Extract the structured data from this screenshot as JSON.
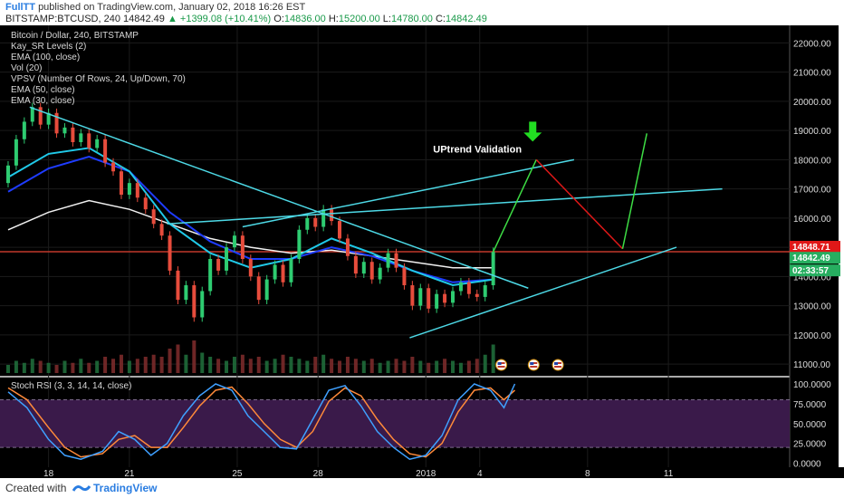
{
  "header": {
    "author": "FullTT",
    "published": "published on TradingView.com, January 02, 2018 16:26 EST",
    "symbol": "BITSTAMP:BTCUSD, 240",
    "last": "14842.49",
    "change": "▲ +1399.08 (+10.41%)",
    "o_label": "O:",
    "o_value": "14836.00",
    "h_label": "H:",
    "h_value": "15200.00",
    "l_label": "L:",
    "l_value": "14780.00",
    "c_label": "C:",
    "c_value": "14842.49"
  },
  "legend": [
    "Bitcoin / Dollar, 240, BITSTAMP",
    "Kay_SR Levels (2)",
    "EMA (100, close)",
    "Vol (20)",
    "VPSV (Number Of Rows, 24, Up/Down, 70)",
    "EMA (50, close)",
    "EMA (30, close)"
  ],
  "annotation": "UPtrend Validation",
  "price_tags": [
    "14848.71",
    "14842.49",
    "02:33:57"
  ],
  "rsi_label": "Stoch RSI (3, 3, 14, 14, close)",
  "footer": {
    "created": "Created with",
    "brand": "TradingView"
  },
  "colors": {
    "background": "#000000",
    "up_candle": "#2ecc71",
    "down_candle": "#e74c3c",
    "trendline": "#4dd9e6",
    "projection_up": "#3ddc44",
    "projection_down": "#e01818",
    "resistance": "#c0392b",
    "ema30": "#20c9e8",
    "ema50": "#1e3cff",
    "ema100": "#f0f0f0",
    "rsi_k": "#3fa0ff",
    "rsi_d": "#ff8a3a",
    "rsi_band": "#3a1a4a"
  },
  "icons": [
    "flag-us-icon",
    "green-down-arrow-icon",
    "tradingview-logo-icon"
  ],
  "chart_data": [
    {
      "type": "candlestick",
      "price_axis_ticks": [
        "22000.00",
        "21000.00",
        "20000.00",
        "19000.00",
        "18000.00",
        "17000.00",
        "16000.00",
        "15000.00",
        "14000.00",
        "13000.00",
        "12000.00",
        "11000.00"
      ],
      "price_ticks_values": [
        22000,
        21000,
        20000,
        19000,
        18000,
        17000,
        16000,
        15000,
        14000,
        13000,
        12000,
        11000
      ],
      "ylim": [
        10600,
        22600
      ],
      "x_ticks": [
        "18",
        "21",
        "25",
        "28",
        "2018",
        "4",
        "8",
        "11"
      ],
      "x_ticks_day": [
        0,
        3,
        7,
        10,
        14,
        16,
        20,
        23
      ],
      "xlim_days": [
        -1.6,
        27.5
      ],
      "candles": [
        {
          "d": -1.5,
          "o": 17200,
          "c": 17800
        },
        {
          "d": -1.2,
          "o": 17800,
          "c": 18700
        },
        {
          "d": -0.9,
          "o": 18700,
          "c": 19300
        },
        {
          "d": -0.6,
          "o": 19300,
          "c": 19800
        },
        {
          "d": -0.3,
          "o": 19800,
          "c": 19200
        },
        {
          "d": 0.0,
          "o": 19200,
          "c": 19600
        },
        {
          "d": 0.3,
          "o": 19600,
          "c": 18900
        },
        {
          "d": 0.6,
          "o": 18900,
          "c": 19100
        },
        {
          "d": 0.9,
          "o": 19100,
          "c": 18600
        },
        {
          "d": 1.2,
          "o": 18600,
          "c": 18900
        },
        {
          "d": 1.5,
          "o": 18900,
          "c": 18400
        },
        {
          "d": 1.8,
          "o": 18400,
          "c": 18700
        },
        {
          "d": 2.1,
          "o": 18700,
          "c": 17900
        },
        {
          "d": 2.4,
          "o": 17900,
          "c": 17600
        },
        {
          "d": 2.7,
          "o": 17600,
          "c": 16800
        },
        {
          "d": 3.0,
          "o": 16800,
          "c": 17200
        },
        {
          "d": 3.3,
          "o": 17200,
          "c": 16700
        },
        {
          "d": 3.6,
          "o": 16700,
          "c": 16300
        },
        {
          "d": 3.9,
          "o": 16300,
          "c": 15800
        },
        {
          "d": 4.2,
          "o": 15800,
          "c": 15400
        },
        {
          "d": 4.5,
          "o": 15400,
          "c": 14200
        },
        {
          "d": 4.8,
          "o": 14200,
          "c": 13200
        },
        {
          "d": 5.1,
          "o": 13200,
          "c": 13700
        },
        {
          "d": 5.4,
          "o": 13700,
          "c": 12600
        },
        {
          "d": 5.7,
          "o": 12600,
          "c": 13500
        },
        {
          "d": 6.0,
          "o": 13500,
          "c": 14600
        },
        {
          "d": 6.3,
          "o": 14600,
          "c": 14200
        },
        {
          "d": 6.6,
          "o": 14200,
          "c": 15000
        },
        {
          "d": 6.9,
          "o": 15000,
          "c": 15400
        },
        {
          "d": 7.2,
          "o": 15400,
          "c": 14600
        },
        {
          "d": 7.5,
          "o": 14600,
          "c": 14000
        },
        {
          "d": 7.8,
          "o": 14000,
          "c": 13200
        },
        {
          "d": 8.1,
          "o": 13200,
          "c": 13900
        },
        {
          "d": 8.4,
          "o": 13900,
          "c": 14400
        },
        {
          "d": 8.7,
          "o": 14400,
          "c": 13800
        },
        {
          "d": 9.0,
          "o": 13800,
          "c": 14600
        },
        {
          "d": 9.3,
          "o": 14600,
          "c": 15600
        },
        {
          "d": 9.6,
          "o": 15600,
          "c": 16000
        },
        {
          "d": 9.9,
          "o": 16000,
          "c": 15700
        },
        {
          "d": 10.2,
          "o": 15700,
          "c": 16300
        },
        {
          "d": 10.5,
          "o": 16300,
          "c": 15900
        },
        {
          "d": 10.8,
          "o": 15900,
          "c": 15300
        },
        {
          "d": 11.1,
          "o": 15300,
          "c": 14700
        },
        {
          "d": 11.4,
          "o": 14700,
          "c": 14100
        },
        {
          "d": 11.7,
          "o": 14100,
          "c": 14500
        },
        {
          "d": 12.0,
          "o": 14500,
          "c": 13900
        },
        {
          "d": 12.3,
          "o": 13900,
          "c": 14300
        },
        {
          "d": 12.6,
          "o": 14300,
          "c": 14800
        },
        {
          "d": 12.9,
          "o": 14800,
          "c": 14300
        },
        {
          "d": 13.2,
          "o": 14300,
          "c": 13700
        },
        {
          "d": 13.5,
          "o": 13700,
          "c": 13000
        },
        {
          "d": 13.8,
          "o": 13000,
          "c": 13600
        },
        {
          "d": 14.1,
          "o": 13600,
          "c": 12900
        },
        {
          "d": 14.4,
          "o": 12900,
          "c": 13400
        },
        {
          "d": 14.7,
          "o": 13400,
          "c": 13100
        },
        {
          "d": 15.0,
          "o": 13100,
          "c": 13500
        },
        {
          "d": 15.3,
          "o": 13500,
          "c": 13800
        },
        {
          "d": 15.6,
          "o": 13800,
          "c": 13400
        },
        {
          "d": 15.9,
          "o": 13400,
          "c": 13300
        },
        {
          "d": 16.2,
          "o": 13300,
          "c": 13700
        },
        {
          "d": 16.5,
          "o": 13700,
          "c": 14842
        }
      ],
      "volume": [
        4,
        6,
        5,
        7,
        6,
        5,
        4,
        6,
        5,
        7,
        5,
        6,
        8,
        7,
        9,
        6,
        7,
        8,
        9,
        8,
        12,
        14,
        9,
        16,
        10,
        8,
        7,
        6,
        8,
        9,
        7,
        8,
        6,
        7,
        9,
        8,
        7,
        6,
        8,
        9,
        7,
        6,
        8,
        7,
        6,
        7,
        5,
        6,
        7,
        6,
        8,
        6,
        5,
        6,
        7,
        6,
        5,
        6,
        7,
        9,
        14
      ],
      "ema30": [
        [
          -1.5,
          17400
        ],
        [
          0,
          18200
        ],
        [
          1.5,
          18400
        ],
        [
          3,
          17600
        ],
        [
          4.5,
          15800
        ],
        [
          6,
          14800
        ],
        [
          7.5,
          14300
        ],
        [
          9,
          14600
        ],
        [
          10.5,
          15300
        ],
        [
          12,
          14800
        ],
        [
          13.5,
          14200
        ],
        [
          15,
          13700
        ],
        [
          16.5,
          13900
        ]
      ],
      "ema50": [
        [
          -1.5,
          16900
        ],
        [
          0,
          17700
        ],
        [
          1.5,
          18100
        ],
        [
          3,
          17600
        ],
        [
          4.5,
          16200
        ],
        [
          6,
          15200
        ],
        [
          7.5,
          14600
        ],
        [
          9,
          14600
        ],
        [
          10.5,
          15000
        ],
        [
          12,
          14700
        ],
        [
          13.5,
          14200
        ],
        [
          15,
          13800
        ],
        [
          16.5,
          13900
        ]
      ],
      "ema100": [
        [
          -1.5,
          15600
        ],
        [
          0,
          16200
        ],
        [
          1.5,
          16600
        ],
        [
          3,
          16300
        ],
        [
          4.5,
          15800
        ],
        [
          6,
          15300
        ],
        [
          7.5,
          15000
        ],
        [
          9,
          14800
        ],
        [
          10.5,
          14900
        ],
        [
          12,
          14700
        ],
        [
          13.5,
          14500
        ],
        [
          15,
          14300
        ],
        [
          16.5,
          14300
        ]
      ],
      "resistance_level": 14848.71,
      "trendlines": [
        [
          [
            -0.7,
            19800
          ],
          [
            17.8,
            13600
          ]
        ],
        [
          [
            4.4,
            15800
          ],
          [
            25,
            17000
          ]
        ],
        [
          [
            13.4,
            11900
          ],
          [
            23.3,
            15000
          ]
        ],
        [
          [
            7.2,
            15700
          ],
          [
            19.5,
            18000
          ]
        ]
      ],
      "projection": [
        [
          16.5,
          14842
        ],
        [
          18.1,
          18000
        ],
        [
          21.3,
          14948
        ],
        [
          22.2,
          18900
        ]
      ]
    },
    {
      "type": "line",
      "title": "Stoch RSI (3, 3, 14, 14, close)",
      "ticks": [
        "100.0000",
        "75.0000",
        "50.0000",
        "25.0000",
        "0.0000"
      ],
      "ticks_values": [
        100,
        75,
        50,
        25,
        0
      ],
      "ylim": [
        -5,
        108
      ],
      "band": [
        20,
        80
      ],
      "k": [
        [
          -1.5,
          90
        ],
        [
          -0.8,
          70
        ],
        [
          0,
          30
        ],
        [
          0.6,
          10
        ],
        [
          1.2,
          5
        ],
        [
          2,
          15
        ],
        [
          2.6,
          40
        ],
        [
          3.2,
          30
        ],
        [
          3.8,
          10
        ],
        [
          4.4,
          25
        ],
        [
          5,
          60
        ],
        [
          5.6,
          85
        ],
        [
          6.2,
          100
        ],
        [
          6.8,
          92
        ],
        [
          7.4,
          60
        ],
        [
          8,
          40
        ],
        [
          8.6,
          20
        ],
        [
          9.2,
          18
        ],
        [
          9.8,
          55
        ],
        [
          10.4,
          92
        ],
        [
          11,
          98
        ],
        [
          11.6,
          72
        ],
        [
          12.2,
          40
        ],
        [
          12.8,
          20
        ],
        [
          13.4,
          5
        ],
        [
          14,
          10
        ],
        [
          14.6,
          35
        ],
        [
          15.2,
          80
        ],
        [
          15.8,
          100
        ],
        [
          16.4,
          92
        ],
        [
          16.9,
          70
        ],
        [
          17.3,
          100
        ]
      ],
      "d": [
        [
          -1.5,
          95
        ],
        [
          -0.8,
          80
        ],
        [
          0,
          45
        ],
        [
          0.6,
          20
        ],
        [
          1.2,
          8
        ],
        [
          2,
          12
        ],
        [
          2.6,
          30
        ],
        [
          3.2,
          35
        ],
        [
          3.8,
          20
        ],
        [
          4.4,
          20
        ],
        [
          5,
          45
        ],
        [
          5.6,
          72
        ],
        [
          6.2,
          92
        ],
        [
          6.8,
          96
        ],
        [
          7.4,
          75
        ],
        [
          8,
          50
        ],
        [
          8.6,
          30
        ],
        [
          9.2,
          20
        ],
        [
          9.8,
          40
        ],
        [
          10.4,
          78
        ],
        [
          11,
          95
        ],
        [
          11.6,
          85
        ],
        [
          12.2,
          55
        ],
        [
          12.8,
          30
        ],
        [
          13.4,
          12
        ],
        [
          14,
          8
        ],
        [
          14.6,
          25
        ],
        [
          15.2,
          65
        ],
        [
          15.8,
          92
        ],
        [
          16.4,
          95
        ],
        [
          16.9,
          80
        ],
        [
          17.3,
          92
        ]
      ]
    }
  ]
}
